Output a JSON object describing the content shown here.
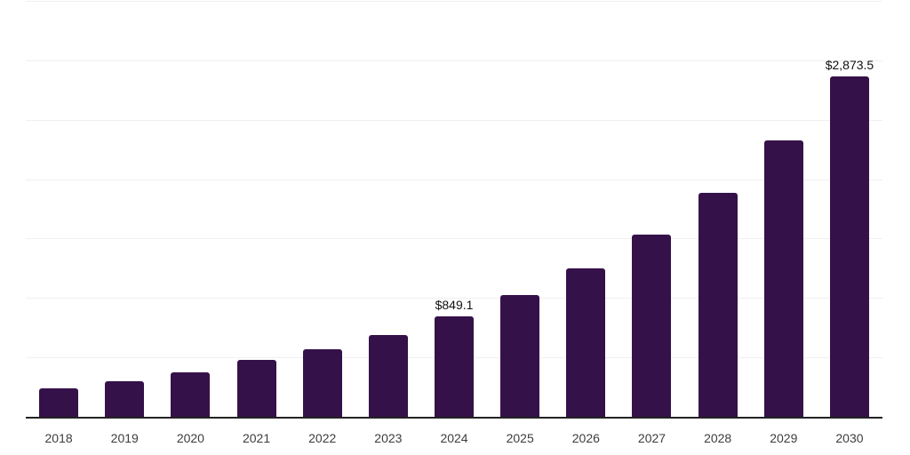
{
  "chart_data": {
    "type": "bar",
    "title": "",
    "xlabel": "",
    "ylabel": "",
    "categories": [
      "2018",
      "2019",
      "2020",
      "2021",
      "2022",
      "2023",
      "2024",
      "2025",
      "2026",
      "2027",
      "2028",
      "2029",
      "2030"
    ],
    "values": [
      250,
      310,
      382,
      487,
      577,
      697,
      849.1,
      1033,
      1256,
      1543,
      1891,
      2332,
      2873.5
    ],
    "labeled_values": {
      "2024": "$849.1",
      "2030": "$2,873.5"
    },
    "ylim": [
      0,
      3500
    ],
    "gridline_step": 500,
    "grid": "horizontal gridlines only, no y-axis tick labels",
    "legend": "none",
    "notes": "Only the 2024 and 2030 bars display data labels; remaining values estimated from bar heights"
  },
  "colors": {
    "background": "#ffffff",
    "bar": "#351149",
    "gridline": "#f0f0f0",
    "axis_line": "#222222",
    "tick_label": "#3d3d3d",
    "data_label": "#111111"
  }
}
